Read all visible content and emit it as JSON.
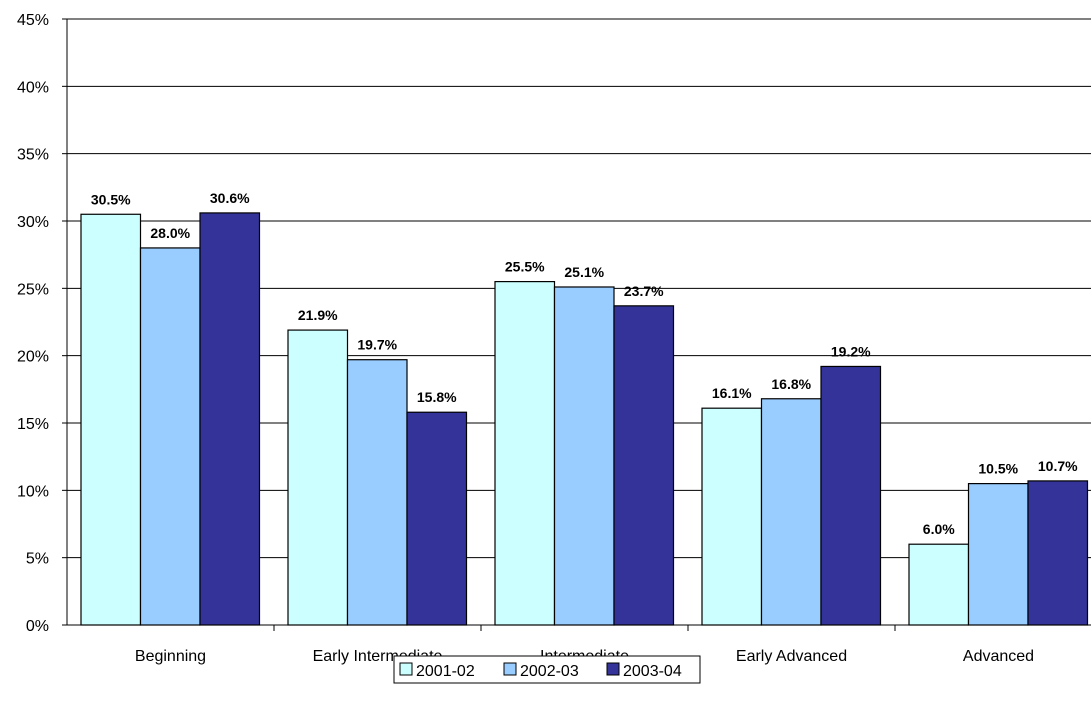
{
  "chart_data": {
    "type": "bar",
    "title": "",
    "xlabel": "",
    "ylabel": "",
    "categories": [
      "Beginning",
      "Early Intermediate",
      "Intermediate",
      "Early Advanced",
      "Advanced"
    ],
    "series": [
      {
        "name": "2001-02",
        "color": "#CCFFFF",
        "values": [
          30.5,
          21.9,
          25.5,
          16.1,
          6.0
        ],
        "labels": [
          "30.5%",
          "21.9%",
          "25.5%",
          "16.1%",
          "6.0%"
        ]
      },
      {
        "name": "2002-03",
        "color": "#99CCFF",
        "values": [
          28.0,
          19.7,
          25.1,
          16.8,
          10.5
        ],
        "labels": [
          "28.0%",
          "19.7%",
          "25.1%",
          "16.8%",
          "10.5%"
        ]
      },
      {
        "name": "2003-04",
        "color": "#333399",
        "values": [
          30.6,
          15.8,
          23.7,
          19.2,
          10.7
        ],
        "labels": [
          "30.6%",
          "15.8%",
          "23.7%",
          "19.2%",
          "10.7%"
        ]
      }
    ],
    "ylim": [
      0,
      45
    ],
    "yticks": [
      0,
      5,
      10,
      15,
      20,
      25,
      30,
      35,
      40,
      45
    ],
    "ytick_labels": [
      "0%",
      "5%",
      "10%",
      "15%",
      "20%",
      "25%",
      "30%",
      "35%",
      "40%",
      "45%"
    ],
    "grid": true,
    "legend_position": "bottom"
  }
}
